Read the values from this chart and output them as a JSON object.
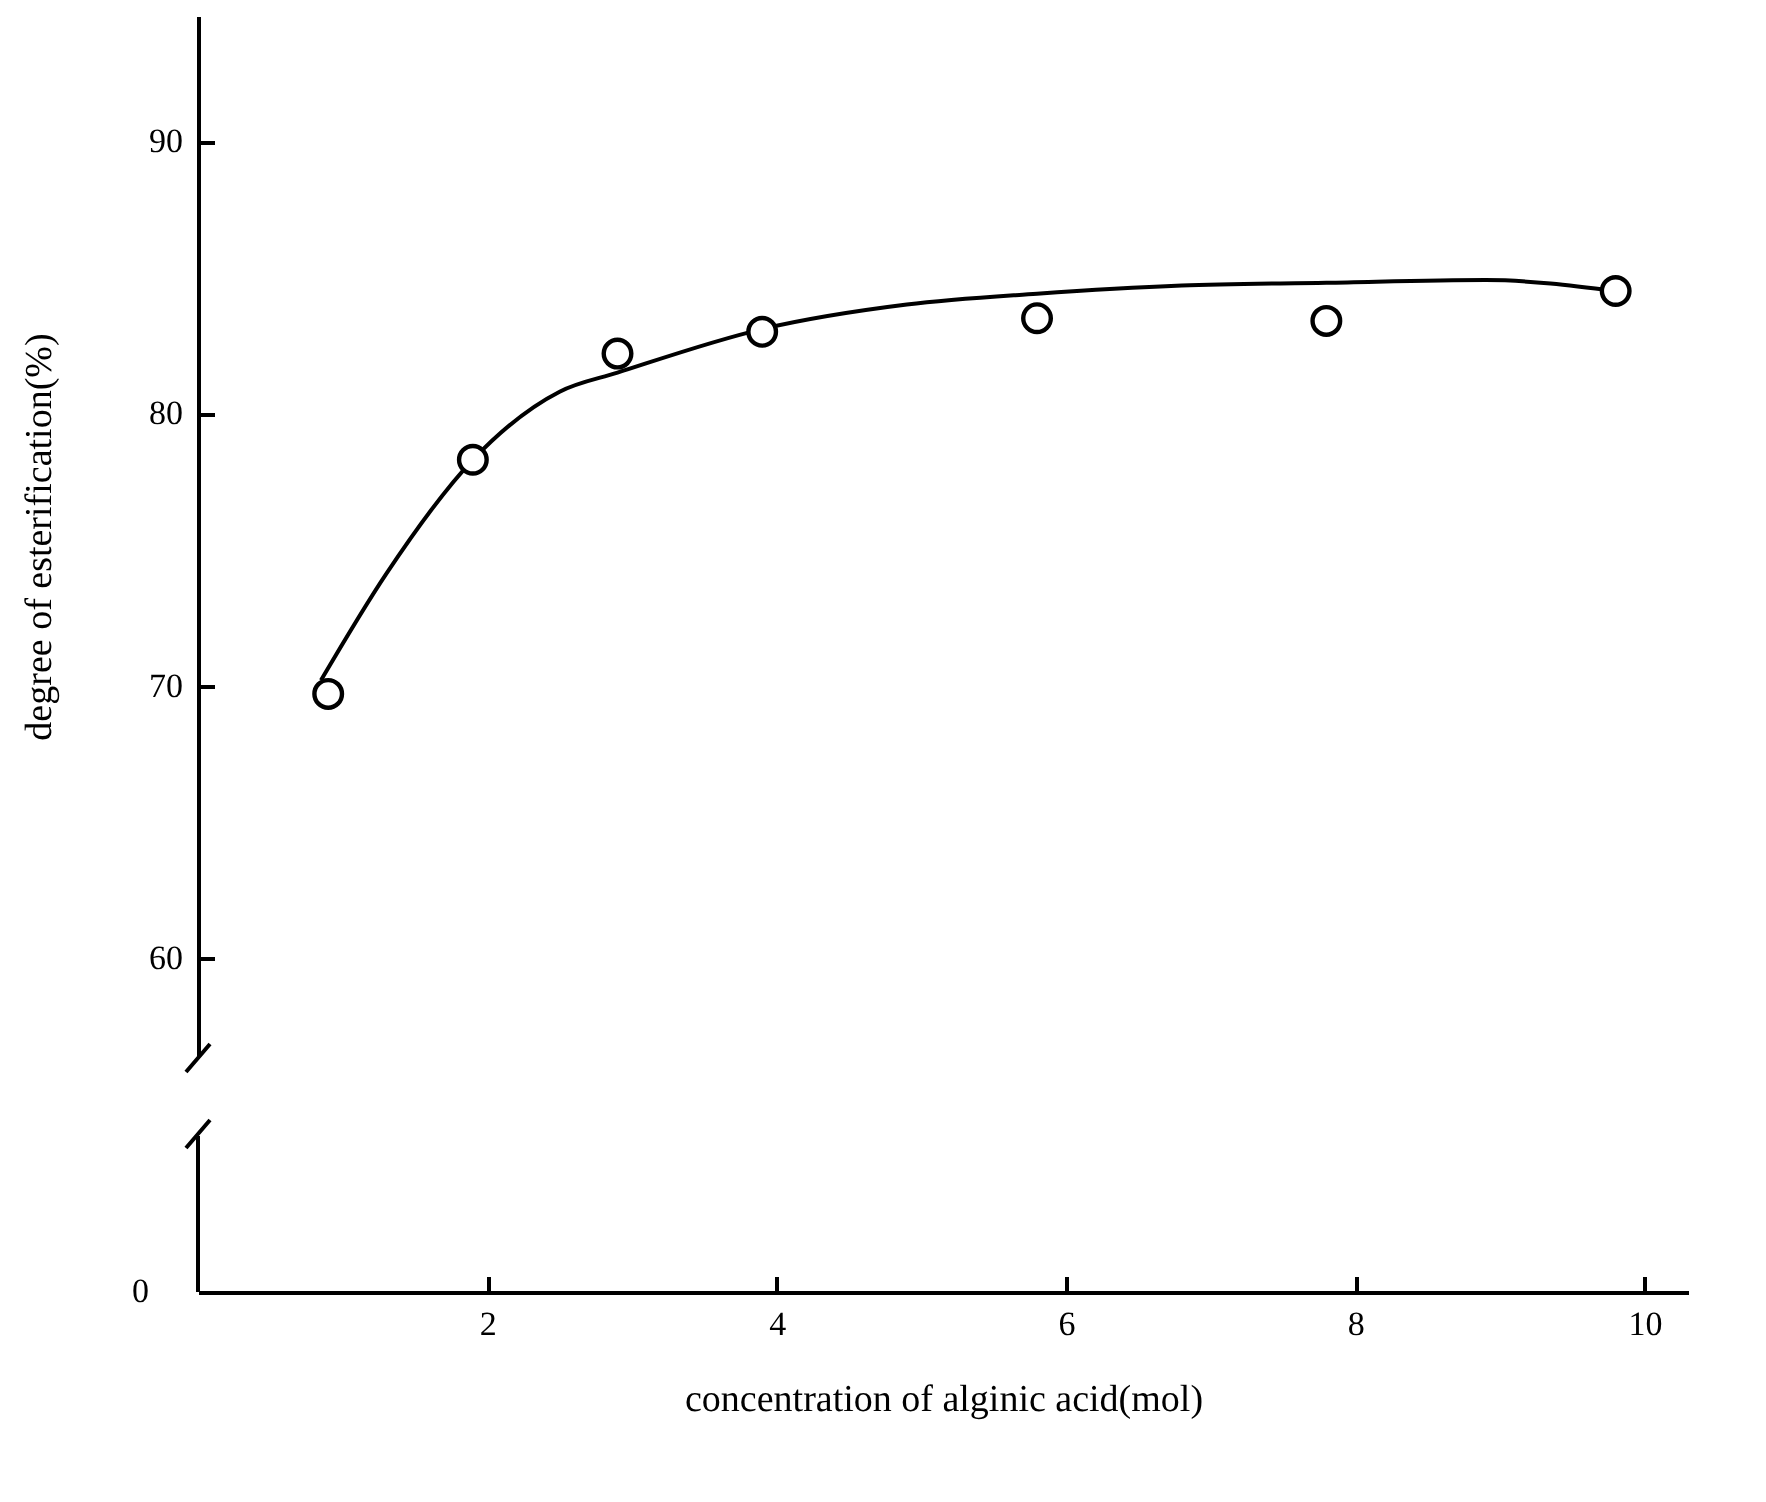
{
  "chart_data": {
    "type": "scatter",
    "xlabel": "concentration of alginic acid(mol)",
    "ylabel": "degree of esterification(%)",
    "xlim": [
      0,
      10.3
    ],
    "xticks": [
      2,
      4,
      6,
      8,
      10
    ],
    "ylim": [
      56.4,
      94.6
    ],
    "yticks": [
      60,
      70,
      80,
      90
    ],
    "marker": "circle",
    "annotations": [
      "0"
    ],
    "series": [
      {
        "type": "scatter",
        "color": "#000000",
        "x": [
          0.9,
          1.9,
          2.9,
          3.9,
          5.8,
          7.8,
          9.8
        ],
        "values": [
          69.7,
          78.3,
          82.2,
          83.0,
          83.5,
          83.4,
          84.5
        ]
      },
      {
        "type": "line",
        "color": "#000000",
        "marker": "none",
        "line_style": "solid",
        "x": [
          0.85,
          1.3,
          1.9,
          2.5,
          2.9,
          3.9,
          4.9,
          5.8,
          6.8,
          7.8,
          8.9,
          9.8
        ],
        "values": [
          70.2,
          74.1,
          78.3,
          80.8,
          81.5,
          83.1,
          84.0,
          84.4,
          84.7,
          84.8,
          84.9,
          84.5
        ]
      }
    ]
  }
}
